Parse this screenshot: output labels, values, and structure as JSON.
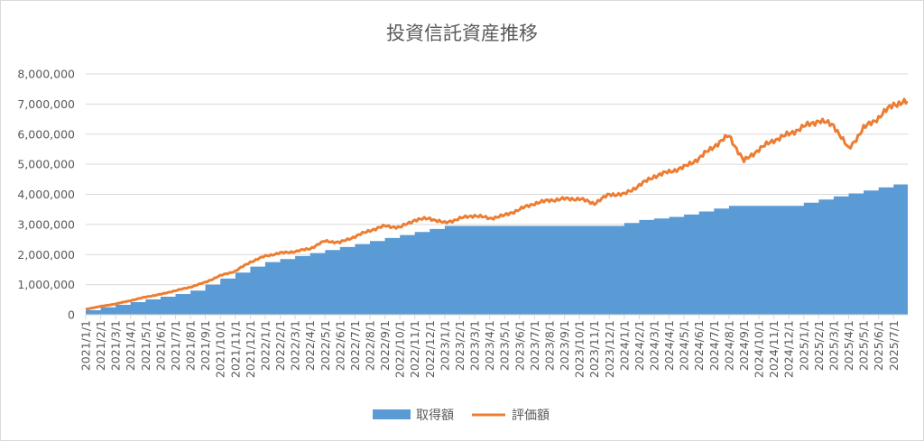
{
  "chart_data": {
    "type": "area",
    "title": "投資信託資産推移",
    "xlabel": "",
    "ylabel": "",
    "ylim": [
      0,
      8000000
    ],
    "yticks": [
      0,
      1000000,
      2000000,
      3000000,
      4000000,
      5000000,
      6000000,
      7000000,
      8000000
    ],
    "ytick_labels": [
      "0",
      "1,000,000",
      "2,000,000",
      "3,000,000",
      "4,000,000",
      "5,000,000",
      "6,000,000",
      "7,000,000",
      "8,000,000"
    ],
    "x_range": [
      "2021/1/1",
      "2025/7/31"
    ],
    "categories": [
      "2021/1/1",
      "2021/2/1",
      "2021/3/1",
      "2021/4/1",
      "2021/5/1",
      "2021/6/1",
      "2021/7/1",
      "2021/8/1",
      "2021/9/1",
      "2021/10/1",
      "2021/11/1",
      "2021/12/1",
      "2022/1/1",
      "2022/2/1",
      "2022/3/1",
      "2022/4/1",
      "2022/5/1",
      "2022/6/1",
      "2022/7/1",
      "2022/8/1",
      "2022/9/1",
      "2022/10/1",
      "2022/11/1",
      "2022/12/1",
      "2023/1/1",
      "2023/2/1",
      "2023/3/1",
      "2023/4/1",
      "2023/5/1",
      "2023/6/1",
      "2023/7/1",
      "2023/8/1",
      "2023/9/1",
      "2023/10/1",
      "2023/11/1",
      "2023/12/1",
      "2024/1/1",
      "2024/2/1",
      "2024/3/1",
      "2024/4/1",
      "2024/5/1",
      "2024/6/1",
      "2024/7/1",
      "2024/8/1",
      "2024/9/1",
      "2024/10/1",
      "2024/11/1",
      "2024/12/1",
      "2025/1/1",
      "2025/2/1",
      "2025/3/1",
      "2025/4/1",
      "2025/5/1",
      "2025/6/1",
      "2025/7/1"
    ],
    "legend_position": "bottom",
    "grid": true,
    "series": [
      {
        "name": "取得額",
        "kind": "area",
        "color": "#5b9bd5",
        "values": [
          150000,
          250000,
          330000,
          420000,
          510000,
          600000,
          690000,
          800000,
          1000000,
          1200000,
          1400000,
          1600000,
          1750000,
          1850000,
          1950000,
          2050000,
          2150000,
          2250000,
          2350000,
          2450000,
          2550000,
          2650000,
          2750000,
          2850000,
          2950000,
          2950000,
          2950000,
          2950000,
          2950000,
          2950000,
          2950000,
          2950000,
          2950000,
          2950000,
          2950000,
          2950000,
          3050000,
          3150000,
          3200000,
          3250000,
          3330000,
          3430000,
          3530000,
          3620000,
          3620000,
          3620000,
          3620000,
          3620000,
          3720000,
          3830000,
          3930000,
          4030000,
          4130000,
          4230000,
          4330000
        ]
      },
      {
        "name": "評価額",
        "kind": "line",
        "color": "#ed7d31",
        "values": [
          180000,
          280000,
          360000,
          470000,
          590000,
          680000,
          800000,
          920000,
          1080000,
          1300000,
          1450000,
          1750000,
          1950000,
          2050000,
          2100000,
          2200000,
          2450000,
          2400000,
          2600000,
          2800000,
          2950000,
          2900000,
          3150000,
          3200000,
          3050000,
          3200000,
          3300000,
          3200000,
          3300000,
          3500000,
          3700000,
          3800000,
          3850000,
          3850000,
          3700000,
          4000000,
          4000000,
          4300000,
          4600000,
          4750000,
          4900000,
          5200000,
          5600000,
          5950000,
          5100000,
          5500000,
          5800000,
          6000000,
          6250000,
          6450000,
          6300000,
          5500000,
          6200000,
          6550000,
          7000000
        ]
      }
    ]
  }
}
